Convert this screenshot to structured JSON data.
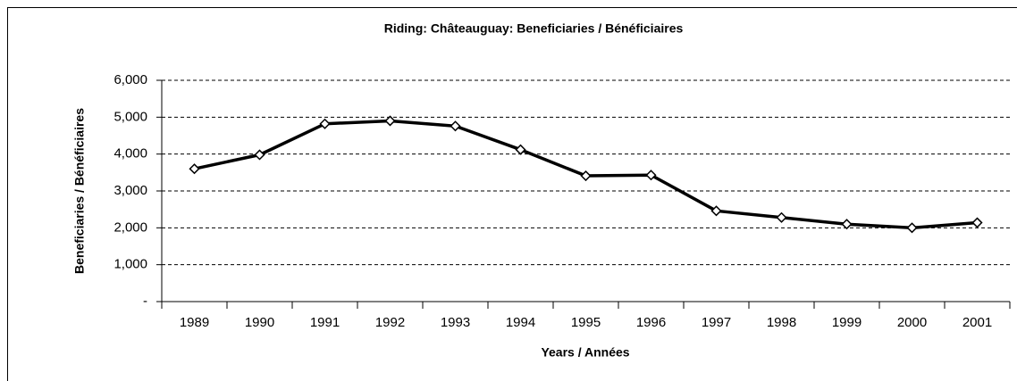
{
  "chart_data": {
    "type": "line",
    "title": "Riding:  Châteauguay:  Beneficiaries / Bénéficiaires",
    "x_label": "Years / Années",
    "y_label": "Beneficiaries / Bénéficiaires",
    "categories": [
      "1989",
      "1990",
      "1991",
      "1992",
      "1993",
      "1994",
      "1995",
      "1996",
      "1997",
      "1998",
      "1999",
      "2000",
      "2001"
    ],
    "series": [
      {
        "name": "Beneficiaries / Bénéficiaires",
        "color": "#000000",
        "values": [
          3600,
          3980,
          4820,
          4900,
          4760,
          4120,
          3410,
          3430,
          2460,
          2280,
          2100,
          2000,
          2140
        ]
      }
    ],
    "ylim": [
      0,
      6000
    ],
    "yticks": [
      {
        "value": 0,
        "label": "-"
      },
      {
        "value": 1000,
        "label": "1,000"
      },
      {
        "value": 2000,
        "label": "2,000"
      },
      {
        "value": 3000,
        "label": "3,000"
      },
      {
        "value": 4000,
        "label": "4,000"
      },
      {
        "value": 5000,
        "label": "5,000"
      },
      {
        "value": 6000,
        "label": "6,000"
      }
    ],
    "grid": true
  }
}
